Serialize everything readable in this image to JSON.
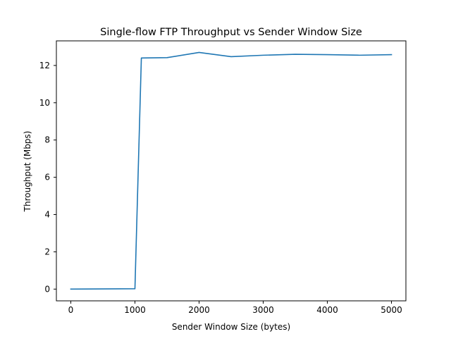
{
  "chart_data": {
    "type": "line",
    "title": "Single-flow FTP Throughput vs Sender Window Size",
    "xlabel": "Sender Window Size (bytes)",
    "ylabel": "Throughput (Mbps)",
    "xlim": [
      -225,
      5225
    ],
    "ylim": [
      -0.63,
      13.32
    ],
    "xticks": [
      0,
      1000,
      2000,
      3000,
      4000,
      5000
    ],
    "yticks": [
      0,
      2,
      4,
      6,
      8,
      10,
      12
    ],
    "grid": false,
    "legend": "none",
    "series": [
      {
        "color": "#1f77b4",
        "x": [
          0,
          1000,
          1100,
          1500,
          2000,
          2500,
          3000,
          3500,
          4000,
          4500,
          5000
        ],
        "y": [
          0.0,
          0.02,
          12.4,
          12.42,
          12.7,
          12.47,
          12.55,
          12.6,
          12.58,
          12.55,
          12.58
        ]
      }
    ]
  }
}
